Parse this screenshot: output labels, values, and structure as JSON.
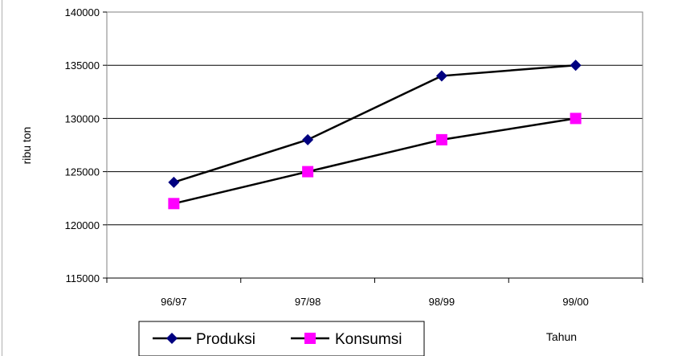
{
  "chart_data": {
    "type": "line",
    "categories": [
      "96/97",
      "97/98",
      "98/99",
      "99/00"
    ],
    "series": [
      {
        "name": "Produksi",
        "values": [
          124000,
          128000,
          134000,
          135000
        ],
        "color": "#000080",
        "marker": "diamond"
      },
      {
        "name": "Konsumsi",
        "values": [
          122000,
          125000,
          128000,
          130000
        ],
        "color": "#ff00ff",
        "marker": "square"
      }
    ],
    "ylabel": "ribu ton",
    "xlabel": "Tahun",
    "ylim": [
      115000,
      140000
    ],
    "yticks": [
      "115000",
      "120000",
      "125000",
      "130000",
      "135000",
      "140000"
    ],
    "grid": true,
    "legend": "bottom"
  }
}
